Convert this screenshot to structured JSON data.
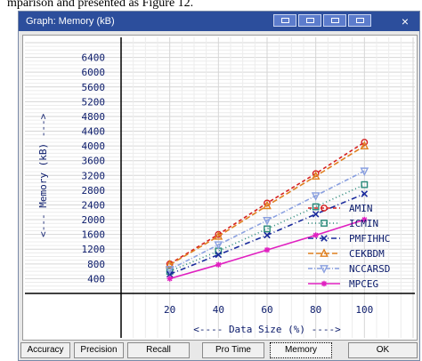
{
  "document": {
    "caption": "mparison and presented as Figure 12."
  },
  "window": {
    "title": "Graph: Memory (kB)",
    "close_glyph": "×"
  },
  "buttons": [
    {
      "label": "Accuracy"
    },
    {
      "label": "Precision"
    },
    {
      "label": "Recall"
    },
    {
      "label": "Pro Time"
    },
    {
      "label": "Memory",
      "active": true
    },
    {
      "label": "OK"
    }
  ],
  "chart_data": {
    "type": "line",
    "xlabel": "<---- Data Size (%) ---->",
    "ylabel": "<--- Memory (kB) --->",
    "x": [
      20,
      40,
      60,
      80,
      100
    ],
    "x_ticks": [
      "20",
      "40",
      "60",
      "80",
      "100"
    ],
    "y_ticks": [
      "400",
      "800",
      "1200",
      "1600",
      "2000",
      "2400",
      "2800",
      "3200",
      "3600",
      "4000",
      "4400",
      "4800",
      "5200",
      "5600",
      "6000",
      "6400"
    ],
    "ylim": [
      0,
      6800
    ],
    "xlim": [
      0,
      120
    ],
    "grid": true,
    "legend_position": "right",
    "series": [
      {
        "name": "AMIN",
        "values": [
          800,
          1600,
          2450,
          3250,
          4100
        ],
        "color": "#d62020",
        "dash": "4,3",
        "marker": "circle"
      },
      {
        "name": "ICMIN",
        "values": [
          600,
          1150,
          1750,
          2350,
          2950
        ],
        "color": "#2a8a7a",
        "dash": "1,3",
        "marker": "square"
      },
      {
        "name": "PMFIHHC",
        "values": [
          520,
          1050,
          1580,
          2150,
          2700
        ],
        "color": "#1a2a9c",
        "dash": "6,3,1,3",
        "marker": "x"
      },
      {
        "name": "CEKBDM",
        "values": [
          780,
          1550,
          2380,
          3180,
          4000
        ],
        "color": "#e08020",
        "dash": "6,3",
        "marker": "triangle"
      },
      {
        "name": "NCCARSD",
        "values": [
          650,
          1320,
          1980,
          2650,
          3320
        ],
        "color": "#8aa0e0",
        "dash": "5,2,1,2",
        "marker": "triangle-down"
      },
      {
        "name": "MPCEG",
        "values": [
          400,
          780,
          1180,
          1580,
          2000
        ],
        "color": "#e020c0",
        "dash": "",
        "marker": "star"
      }
    ]
  }
}
